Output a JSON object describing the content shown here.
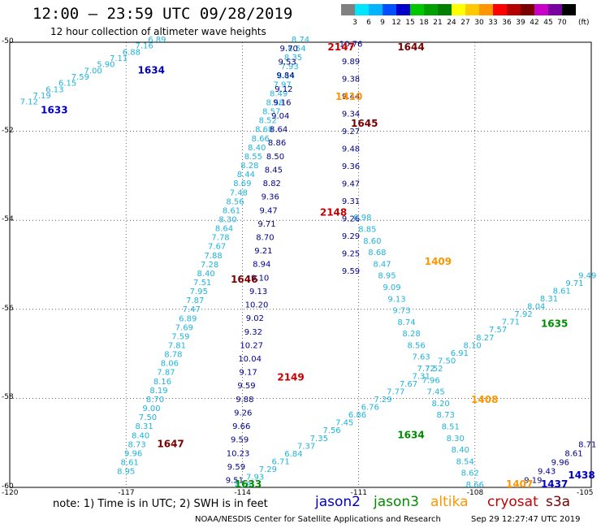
{
  "header": {
    "title": "12:00 — 23:59 UTC 09/28/2019",
    "subtitle": "12 hour collection of altimeter wave heights"
  },
  "colorbar": {
    "unit": "(ft)",
    "ticks": [
      "3",
      "6",
      "9",
      "12",
      "15",
      "18",
      "21",
      "24",
      "27",
      "30",
      "33",
      "36",
      "39",
      "42",
      "45",
      "70"
    ],
    "colors": [
      "#808080",
      "#00e5ff",
      "#00b4ff",
      "#0050ff",
      "#0000c8",
      "#00c800",
      "#00a000",
      "#008000",
      "#ffff00",
      "#ffc800",
      "#ff9600",
      "#ff0000",
      "#b40000",
      "#780000",
      "#c800c8",
      "#7800a0",
      "#000000"
    ]
  },
  "axes": {
    "lon_labels": [
      "-120",
      "-117",
      "-114",
      "-111",
      "-108",
      "-105"
    ],
    "lat_labels": [
      "-50",
      "-52",
      "-54",
      "-56",
      "-58",
      "-60"
    ],
    "lon_range": [
      -120,
      -105
    ],
    "lat_range": [
      -60,
      -50
    ]
  },
  "colors": {
    "light": "#1eb4dc",
    "dark": "#00008c",
    "jason2": "#0000c8",
    "jason3": "#008c00",
    "altika": "#ff9600",
    "cryosat": "#c80000",
    "s3a": "#780000"
  },
  "tracks": [
    {
      "name": "track-1633-1634",
      "color": "light",
      "start": [
        -119.5,
        -51.4
      ],
      "end": [
        -116.2,
        -50.0
      ],
      "values": [
        "7.12",
        "7.19",
        "6.13",
        "6.15",
        "7.59",
        "7.00",
        "5.90",
        "7.11",
        "6.88",
        "7.16",
        "6.89"
      ]
    },
    {
      "name": "track-1647",
      "color": "light",
      "start": [
        -117.0,
        -59.7
      ],
      "end": [
        -112.5,
        -50.0
      ],
      "values": [
        "8.95",
        "8.61",
        "9.96",
        "8.73",
        "8.40",
        "8.31",
        "7.50",
        "9.00",
        "8.70",
        "8.19",
        "8.16",
        "7.87",
        "8.06",
        "8.78",
        "7.81",
        "7.59",
        "7.69",
        "6.89",
        "7.47",
        "7.87",
        "7.95",
        "7.51",
        "8.40",
        "7.28",
        "7.88",
        "7.67",
        "7.78",
        "8.64",
        "8.30",
        "8.61",
        "8.56",
        "7.48",
        "8.69",
        "8.44",
        "8.28",
        "8.55",
        "8.40",
        "8.66",
        "8.68",
        "8.52",
        "8.57",
        "8.58",
        "8.49",
        "7.97",
        "8.14",
        "7.93",
        "8.35",
        "8.54",
        "8.74"
      ]
    },
    {
      "name": "track-1646-2149",
      "color": "dark",
      "start": [
        -114.2,
        -59.9
      ],
      "end": [
        -112.8,
        -50.2
      ],
      "values": [
        "9.51",
        "9.59",
        "10.23",
        "9.59",
        "9.66",
        "9.26",
        "9.88",
        "9.59",
        "9.17",
        "10.04",
        "10.27",
        "9.32",
        "9.02",
        "10.20",
        "9.13",
        "9.10",
        "8.94",
        "9.21",
        "8.70",
        "9.71",
        "9.47",
        "9.36",
        "8.82",
        "8.45",
        "8.50",
        "8.86",
        "8.64",
        "9.04",
        "9.16",
        "9.12",
        "9.84",
        "9.53",
        "9.70"
      ]
    },
    {
      "name": "track-1645-1409",
      "color": "dark",
      "start": [
        -111.2,
        -50.1
      ],
      "end": [
        -111.2,
        -55.2
      ],
      "values": [
        "10.76",
        "9.89",
        "9.38",
        "9.44",
        "9.34",
        "9.27",
        "9.48",
        "9.36",
        "9.47",
        "9.31",
        "9.26",
        "9.29",
        "9.25",
        "9.59"
      ]
    },
    {
      "name": "track-2148",
      "color": "light",
      "start": [
        -110.9,
        -54.0
      ],
      "end": [
        -108.0,
        -60.0
      ],
      "values": [
        "8.98",
        "8.85",
        "8.60",
        "8.68",
        "8.47",
        "8.95",
        "9.09",
        "9.13",
        "9.73",
        "8.74",
        "8.28",
        "8.56",
        "7.63",
        "7.72",
        "7.96",
        "7.45",
        "8.20",
        "8.73",
        "8.51",
        "8.30",
        "8.40",
        "8.54",
        "8.62",
        "8.66"
      ]
    },
    {
      "name": "track-1634-1635",
      "color": "light",
      "start": [
        -114.0,
        -60.0
      ],
      "end": [
        -105.1,
        -55.3
      ],
      "values": [
        "7.18",
        "7.93",
        "7.29",
        "6.71",
        "6.84",
        "7.37",
        "7.35",
        "7.56",
        "7.45",
        "6.86",
        "6.76",
        "7.29",
        "7.77",
        "7.67",
        "7.31",
        "7.52",
        "7.50",
        "6.91",
        "8.10",
        "8.27",
        "7.57",
        "7.71",
        "7.92",
        "8.04",
        "8.31",
        "8.61",
        "9.71",
        "9.49"
      ]
    },
    {
      "name": "track-1437",
      "color": "dark",
      "start": [
        -106.5,
        -59.9
      ],
      "end": [
        -105.1,
        -59.1
      ],
      "values": [
        "9.19",
        "9.43",
        "9.96",
        "8.61",
        "8.71"
      ]
    }
  ],
  "labels": [
    {
      "text": "1633",
      "lon": -119.2,
      "lat": -51.6,
      "color": "jason2"
    },
    {
      "text": "1634",
      "lon": -116.7,
      "lat": -50.7,
      "color": "jason2"
    },
    {
      "text": "2147",
      "lon": -111.8,
      "lat": -50.15,
      "color": "cryosat"
    },
    {
      "text": "1644",
      "lon": -110.0,
      "lat": -50.15,
      "color": "s3a"
    },
    {
      "text": "1410",
      "lon": -111.6,
      "lat": -51.3,
      "color": "altika"
    },
    {
      "text": "1645",
      "lon": -111.2,
      "lat": -51.9,
      "color": "s3a"
    },
    {
      "text": "2148",
      "lon": -112.0,
      "lat": -53.9,
      "color": "cryosat"
    },
    {
      "text": "1409",
      "lon": -109.3,
      "lat": -55.0,
      "color": "altika"
    },
    {
      "text": "1646",
      "lon": -114.3,
      "lat": -55.4,
      "color": "s3a"
    },
    {
      "text": "1635",
      "lon": -106.3,
      "lat": -56.4,
      "color": "jason3"
    },
    {
      "text": "2149",
      "lon": -113.1,
      "lat": -57.6,
      "color": "cryosat"
    },
    {
      "text": "1408",
      "lon": -108.1,
      "lat": -58.1,
      "color": "altika"
    },
    {
      "text": "1634",
      "lon": -110.0,
      "lat": -58.9,
      "color": "jason3"
    },
    {
      "text": "1647",
      "lon": -116.2,
      "lat": -59.1,
      "color": "s3a"
    },
    {
      "text": "1633",
      "lon": -114.2,
      "lat": -60.0,
      "color": "jason3"
    },
    {
      "text": "1407",
      "lon": -107.2,
      "lat": -60.0,
      "color": "altika"
    },
    {
      "text": "1437",
      "lon": -106.3,
      "lat": -60.0,
      "color": "jason2"
    },
    {
      "text": "1438",
      "lon": -105.6,
      "lat": -59.8,
      "color": "jason2"
    }
  ],
  "footer": {
    "note": "note: 1) Time is in UTC; 2) SWH is in feet",
    "legend": [
      {
        "label": "jason2",
        "color": "jason2"
      },
      {
        "label": "jason3",
        "color": "jason3"
      },
      {
        "label": "altika",
        "color": "altika"
      },
      {
        "label": "cryosat",
        "color": "cryosat"
      },
      {
        "label": "s3a",
        "color": "s3a"
      }
    ],
    "credit": "NOAA/NESDIS Center for Satellite Applications and Research",
    "timestamp": "Sep 29 12:27:47 UTC 2019"
  }
}
